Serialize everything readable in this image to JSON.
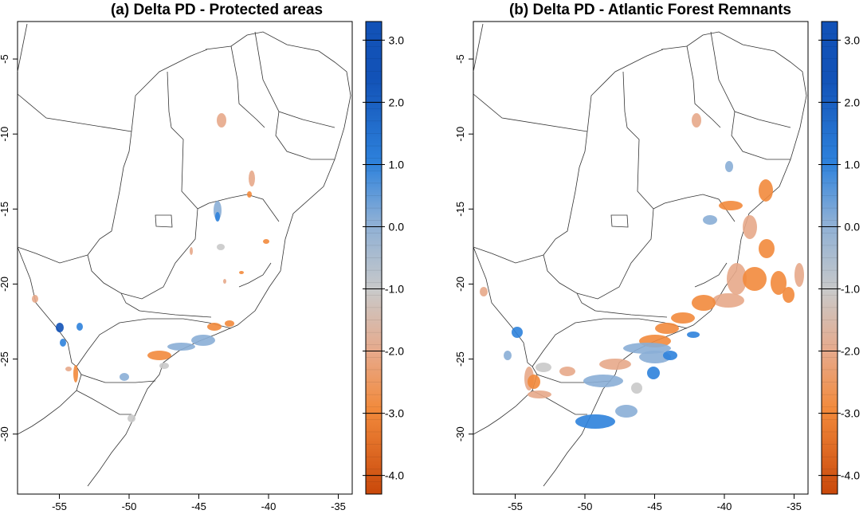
{
  "panels": [
    {
      "title": "(a) Delta PD - Protected areas"
    },
    {
      "title": "(b) Delta PD - Atlantic Forest Remnants"
    }
  ],
  "axes": {
    "x_ticks": [
      "-55",
      "-50",
      "-45",
      "-40",
      "-35"
    ],
    "x_values": [
      -55,
      -50,
      -45,
      -40,
      -35
    ],
    "x_range": [
      -58,
      -34
    ],
    "y_ticks": [
      "-5",
      "-10",
      "-15",
      "-20",
      "-25",
      "-30"
    ],
    "y_values": [
      -5,
      -10,
      -15,
      -20,
      -25,
      -30
    ],
    "y_range": [
      -34,
      -2.5
    ]
  },
  "colorbar": {
    "labels": [
      "3.0",
      "2.0",
      "1.0",
      "0.0",
      "-1.0",
      "-2.0",
      "-3.0",
      "-4.0"
    ],
    "values": [
      3,
      2,
      1,
      0,
      -1,
      -2,
      -3,
      -4
    ],
    "range": [
      -4.3,
      3.3
    ],
    "colors": {
      "max": "#1252b7",
      "mid_high": "#2e82dc",
      "low_blue": "#8aaed6",
      "zero": "#c9c9c9",
      "low_orange": "#e7a98a",
      "mid_low": "#f28a3c",
      "min": "#c9480a"
    }
  }
}
